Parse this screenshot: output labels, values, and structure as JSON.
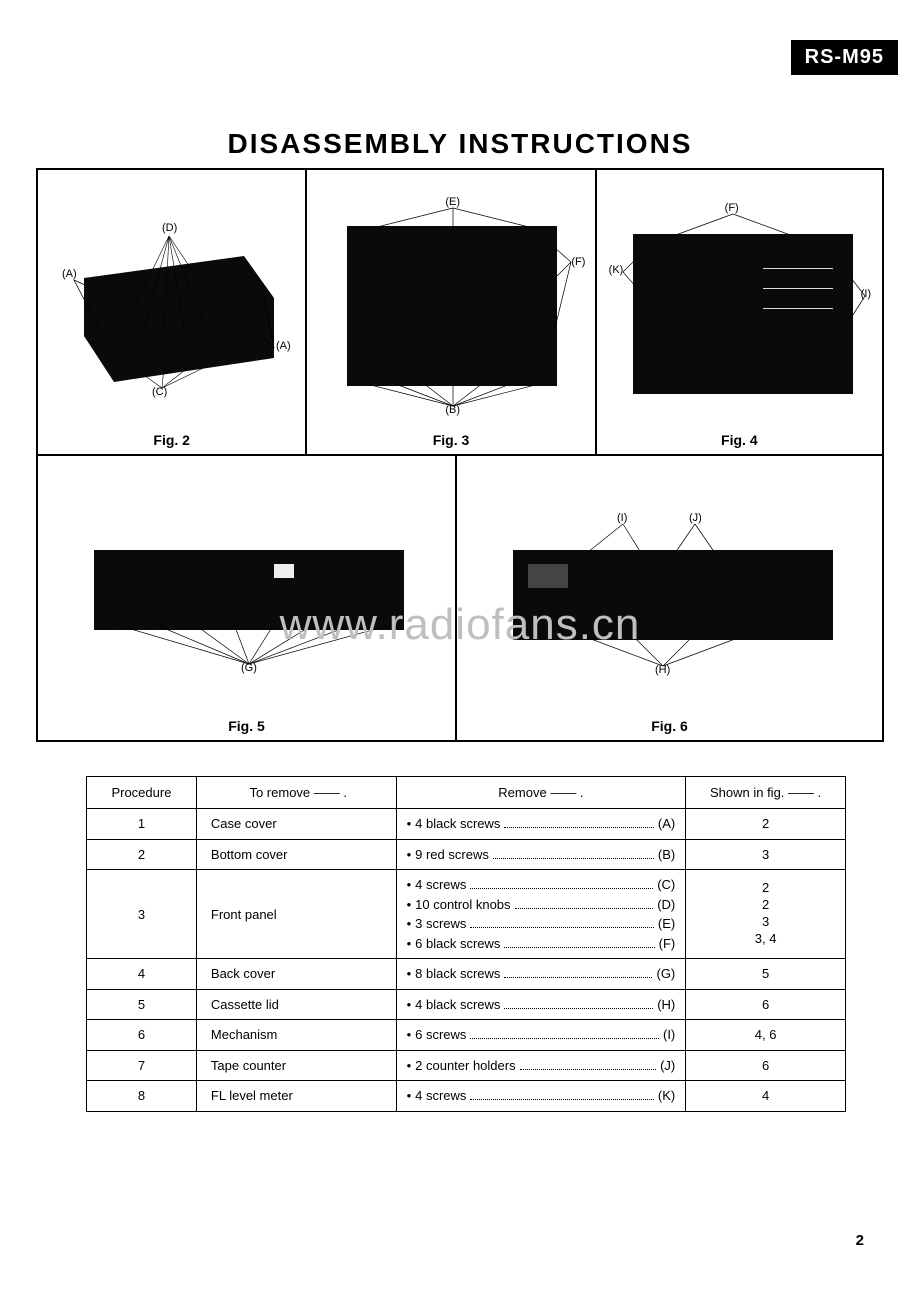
{
  "model_badge": "RS-M95",
  "page_title": "DISASSEMBLY INSTRUCTIONS",
  "watermark": "www.radiofans.cn",
  "page_number": "2",
  "figures": {
    "fig2": {
      "label": "Fig. 2",
      "callouts": [
        "(A)",
        "(A)",
        "(C)",
        "(D)"
      ]
    },
    "fig3": {
      "label": "Fig. 3",
      "callouts": [
        "(B)",
        "(E)",
        "(F)"
      ]
    },
    "fig4": {
      "label": "Fig. 4",
      "callouts": [
        "(F)",
        "(I)",
        "(K)"
      ]
    },
    "fig5": {
      "label": "Fig. 5",
      "callouts": [
        "(G)"
      ]
    },
    "fig6": {
      "label": "Fig. 6",
      "callouts": [
        "(H)",
        "(I)",
        "(J)"
      ]
    }
  },
  "table": {
    "headers": {
      "procedure": "Procedure",
      "to_remove": "To remove —— .",
      "remove": "Remove —— .",
      "shown": "Shown in fig. —— ."
    },
    "rows": [
      {
        "n": "1",
        "to": "Case cover",
        "items": [
          {
            "t": "4 black screws",
            "tag": "(A)"
          }
        ],
        "fig": [
          "2"
        ]
      },
      {
        "n": "2",
        "to": "Bottom cover",
        "items": [
          {
            "t": "9 red screws",
            "tag": "(B)"
          }
        ],
        "fig": [
          "3"
        ]
      },
      {
        "n": "3",
        "to": "Front panel",
        "items": [
          {
            "t": "4 screws",
            "tag": "(C)"
          },
          {
            "t": "10 control knobs",
            "tag": "(D)"
          },
          {
            "t": "3 screws",
            "tag": "(E)"
          },
          {
            "t": "6 black screws",
            "tag": "(F)"
          }
        ],
        "fig": [
          "2",
          "2",
          "3",
          "3, 4"
        ]
      },
      {
        "n": "4",
        "to": "Back cover",
        "items": [
          {
            "t": "8 black screws",
            "tag": "(G)"
          }
        ],
        "fig": [
          "5"
        ]
      },
      {
        "n": "5",
        "to": "Cassette lid",
        "items": [
          {
            "t": "4 black screws",
            "tag": "(H)"
          }
        ],
        "fig": [
          "6"
        ]
      },
      {
        "n": "6",
        "to": "Mechanism",
        "items": [
          {
            "t": "6 screws",
            "tag": "(I)"
          }
        ],
        "fig": [
          "4, 6"
        ]
      },
      {
        "n": "7",
        "to": "Tape counter",
        "items": [
          {
            "t": "2 counter holders",
            "tag": "(J)"
          }
        ],
        "fig": [
          "6"
        ]
      },
      {
        "n": "8",
        "to": "FL level meter",
        "items": [
          {
            "t": "4 screws",
            "tag": "(K)"
          }
        ],
        "fig": [
          "4"
        ]
      }
    ]
  },
  "colors": {
    "page_bg": "#ffffff",
    "ink": "#000000",
    "photo": "#0a0a0a",
    "watermark": "#bfbfbf"
  }
}
